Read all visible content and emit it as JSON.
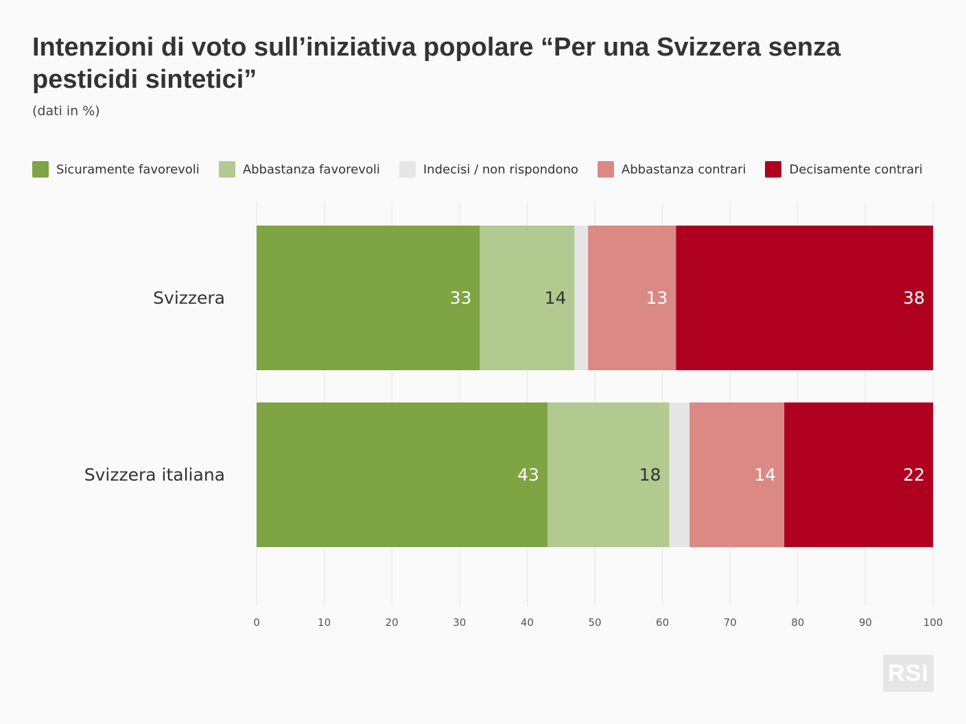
{
  "title": "Intenzioni di voto sull’iniziativa popolare “Per una Svizzera senza pesticidi sintetici”",
  "subtitle": "(dati in %)",
  "logo_text": "RSI",
  "colors": {
    "background": "#fafafa",
    "grid": "#e6e6e6",
    "text": "#333333"
  },
  "chart_data": {
    "type": "bar",
    "orientation": "horizontal",
    "stacked": true,
    "title": "Intenzioni di voto sull’iniziativa popolare “Per una Svizzera senza pesticidi sintetici”",
    "subtitle": "(dati in %)",
    "categories": [
      "Svizzera",
      "Svizzera italiana"
    ],
    "series": [
      {
        "name": "Sicuramente favorevoli",
        "color": "#7fa444",
        "label_color": "#ffffff",
        "values": [
          33,
          43
        ],
        "show_labels": true
      },
      {
        "name": "Abbastanza favorevoli",
        "color": "#b2ca90",
        "label_color": "#333333",
        "values": [
          14,
          18
        ],
        "show_labels": true
      },
      {
        "name": "Indecisi / non rispondono",
        "color": "#e6e6e6",
        "label_color": "#333333",
        "values": [
          2,
          3
        ],
        "show_labels": false
      },
      {
        "name": "Abbastanza contrari",
        "color": "#db8985",
        "label_color": "#ffffff",
        "values": [
          13,
          14
        ],
        "show_labels": true
      },
      {
        "name": "Decisamente contrari",
        "color": "#b00020",
        "label_color": "#ffffff",
        "values": [
          38,
          22
        ],
        "show_labels": true
      }
    ],
    "xlim": [
      0,
      100
    ],
    "xticks": [
      0,
      10,
      20,
      30,
      40,
      50,
      60,
      70,
      80,
      90,
      100
    ],
    "grid": true,
    "legend_position": "top"
  }
}
